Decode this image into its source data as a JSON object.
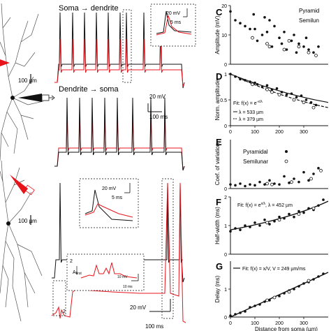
{
  "panels": {
    "C": "C",
    "D": "D",
    "E": "E",
    "F": "F",
    "G": "G"
  },
  "traces": {
    "soma_to_dendrite": "Soma → dendrite",
    "dendrite_to_soma": "Dendrite → soma"
  },
  "scalebars": {
    "morph_top": "100 µm",
    "morph_bottom": "100 µm",
    "inset_top_v": "20 mV",
    "inset_top_t": "5 ms",
    "trace_top_v": "20 mV",
    "trace_top_t": "100 ms",
    "inset_mid_v": "20 mV",
    "inset_mid_t": "5 ms",
    "inset_bottom_v": "10 mV",
    "inset_bottom_t": "10 ms",
    "trace_bottom_v": "20 mV",
    "trace_bottom_t": "100 ms"
  },
  "inset_bottom": {
    "marker": "2",
    "afirst": "A",
    "afirst_sub": "first",
    "tag": "2"
  },
  "colors": {
    "red": "#e8141c",
    "black": "#111111",
    "grey": "#555555"
  },
  "chart_data": [
    {
      "panel": "C",
      "type": "scatter",
      "ylabel": "Amplitude (mV)",
      "ylim": [
        0,
        20
      ],
      "yticks": [
        "0",
        "10",
        "20"
      ],
      "legend": [
        "Pyramid",
        "Semilun"
      ],
      "series": [
        {
          "name": "Pyramid",
          "marker": "filled",
          "x": [
            0,
            20,
            40,
            60,
            80,
            95,
            100,
            110,
            130,
            140,
            150,
            160,
            170,
            180,
            200,
            210,
            220,
            230,
            250,
            260,
            270,
            280,
            300,
            310,
            320,
            340,
            360
          ],
          "y": [
            18,
            15,
            14,
            13,
            12,
            17,
            12,
            8,
            10,
            16,
            11,
            15,
            6,
            13,
            9,
            7,
            11,
            5,
            8,
            10,
            4,
            7,
            6,
            9,
            5,
            4,
            6
          ]
        },
        {
          "name": "Semilun",
          "marker": "open",
          "x": [
            90,
            150,
            160,
            220,
            240,
            280,
            320,
            350
          ],
          "y": [
            9,
            7,
            6,
            5,
            8,
            6,
            4,
            3
          ]
        }
      ]
    },
    {
      "panel": "D",
      "type": "scatter",
      "ylabel": "Norm. amplitude",
      "ylim": [
        0,
        1
      ],
      "yticks": [
        "0",
        "0.5",
        "1"
      ],
      "xticks": [
        "0",
        "100",
        "200",
        "300"
      ],
      "annotations": [
        "Fit: f(x) = e",
        "-x/λ",
        "λ = 533 µm",
        "λ = 379 µm"
      ],
      "series": [
        {
          "name": "Pyramid",
          "marker": "filled",
          "x": [
            0,
            20,
            40,
            60,
            80,
            100,
            110,
            130,
            150,
            170,
            190,
            210,
            230,
            250,
            270,
            290,
            310,
            330,
            350
          ],
          "y": [
            1.0,
            0.95,
            0.9,
            0.88,
            0.85,
            0.83,
            0.8,
            0.75,
            0.78,
            0.7,
            0.72,
            0.65,
            0.6,
            0.62,
            0.55,
            0.58,
            0.5,
            0.45,
            0.4
          ]
        },
        {
          "name": "Semilun",
          "marker": "open",
          "x": [
            90,
            150,
            170,
            200,
            260,
            300,
            340
          ],
          "y": [
            0.8,
            0.7,
            0.65,
            0.6,
            0.5,
            0.45,
            0.35
          ]
        }
      ]
    },
    {
      "panel": "E",
      "type": "scatter",
      "ylabel": "Coef. of variation",
      "ylim": [
        0,
        0.6
      ],
      "yticks": [
        "0"
      ],
      "legend": [
        "Pyramidal",
        "Semilunar"
      ],
      "series": [
        {
          "name": "Pyramidal",
          "marker": "filled",
          "x": [
            0,
            20,
            40,
            60,
            80,
            100,
            120,
            140,
            160,
            180,
            200,
            220,
            240,
            260,
            280,
            300,
            320,
            340,
            360
          ],
          "y": [
            0.05,
            0.04,
            0.06,
            0.03,
            0.05,
            0.04,
            0.08,
            0.05,
            0.1,
            0.06,
            0.05,
            0.15,
            0.07,
            0.12,
            0.08,
            0.2,
            0.1,
            0.18,
            0.25
          ]
        },
        {
          "name": "Semilunar",
          "marker": "open",
          "x": [
            150,
            170,
            250,
            330,
            370
          ],
          "y": [
            0.06,
            0.05,
            0.08,
            0.12,
            0.22
          ]
        }
      ]
    },
    {
      "panel": "F",
      "type": "scatter",
      "ylabel": "Half-width (ms)",
      "ylim": [
        0,
        2
      ],
      "yticks": [
        "0",
        "1",
        "2"
      ],
      "annotations": [
        "Fit: f(x) = e",
        "x/λ",
        ", λ = 452 µm"
      ],
      "series": [
        {
          "name": "Pyramidal",
          "marker": "filled",
          "x": [
            0,
            20,
            40,
            60,
            80,
            100,
            120,
            140,
            160,
            180,
            200,
            220,
            240,
            260,
            280,
            300,
            320,
            340,
            360,
            380
          ],
          "y": [
            0.8,
            0.9,
            0.85,
            1.0,
            0.95,
            1.1,
            1.0,
            1.2,
            1.05,
            1.15,
            1.3,
            1.25,
            1.4,
            1.3,
            1.5,
            1.45,
            1.6,
            1.55,
            1.7,
            1.9
          ]
        },
        {
          "name": "Semilunar",
          "marker": "open",
          "x": [
            150,
            200,
            280,
            340
          ],
          "y": [
            1.1,
            1.2,
            1.4,
            1.6
          ]
        }
      ]
    },
    {
      "panel": "G",
      "type": "scatter",
      "ylabel": "Delay (ms)",
      "ylim": [
        0,
        2
      ],
      "yticks": [
        "0",
        "1"
      ],
      "xlabel": "Distance from soma (µm)",
      "xticks": [
        "0",
        "100",
        "200",
        "300"
      ],
      "annotations": [
        "Fit: f(x) = x/V, V = 249 µm/ms"
      ],
      "series": [
        {
          "name": "Pyramidal",
          "marker": "filled",
          "x": [
            0,
            20,
            40,
            60,
            80,
            100,
            120,
            140,
            160,
            180,
            200,
            220,
            240,
            260,
            280,
            300,
            320,
            340,
            360,
            380
          ],
          "y": [
            0.05,
            0.1,
            0.15,
            0.2,
            0.35,
            0.4,
            0.45,
            0.55,
            0.6,
            0.7,
            0.75,
            0.85,
            0.95,
            1.0,
            1.1,
            1.2,
            1.25,
            1.35,
            1.45,
            1.55
          ]
        },
        {
          "name": "Semilunar",
          "marker": "open",
          "x": [
            150,
            180,
            240,
            320
          ],
          "y": [
            0.6,
            0.7,
            0.9,
            1.3
          ]
        }
      ]
    }
  ]
}
